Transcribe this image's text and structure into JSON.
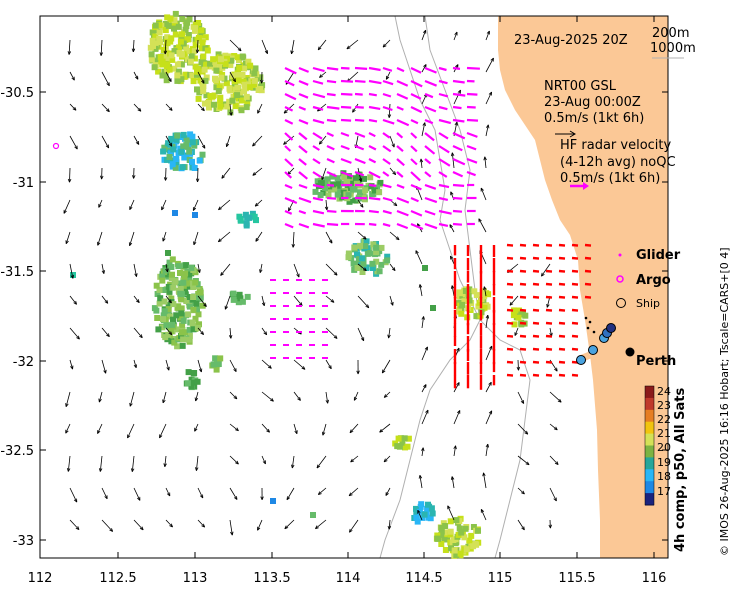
{
  "map": {
    "date_title": "23-Aug-2025 20Z",
    "bathy_labels": [
      "200m",
      "1000m"
    ],
    "nrt_title": "NRT00 GSL",
    "nrt_date": "23-Aug 00:00Z",
    "nrt_scale": "0.5m/s (1kt 6h)",
    "hf_title": "HF radar velocity",
    "hf_subtitle": "(4-12h avg) noQC",
    "hf_scale": "0.5m/s (1kt 6h)",
    "legend_glider": "Glider",
    "legend_argo": "Argo",
    "legend_ship": "Ship",
    "place_perth": "Perth",
    "credit": "© IMOS 26-Aug-2025 16:16 Hobart; Tscale=CARS+[0 4]",
    "colorbar_title": "4h comp, p50, All Sats",
    "colorbar_ticks": [
      "24",
      "23",
      "22",
      "21",
      "20",
      "19",
      "18",
      "17"
    ],
    "x_ticks": [
      "112",
      "112.5",
      "113",
      "113.5",
      "114",
      "114.5",
      "115",
      "115.5",
      "116"
    ],
    "y_ticks": [
      "-30.5",
      "-31",
      "-31.5",
      "-32",
      "-32.5",
      "-33"
    ],
    "colors": {
      "land": "#fbc896",
      "model_arrow": "#000000",
      "hf_arrow": "#ff00ff",
      "hf_red": "#ff0000",
      "glider": "#ff00ff",
      "argo": "#ff00ff"
    }
  }
}
